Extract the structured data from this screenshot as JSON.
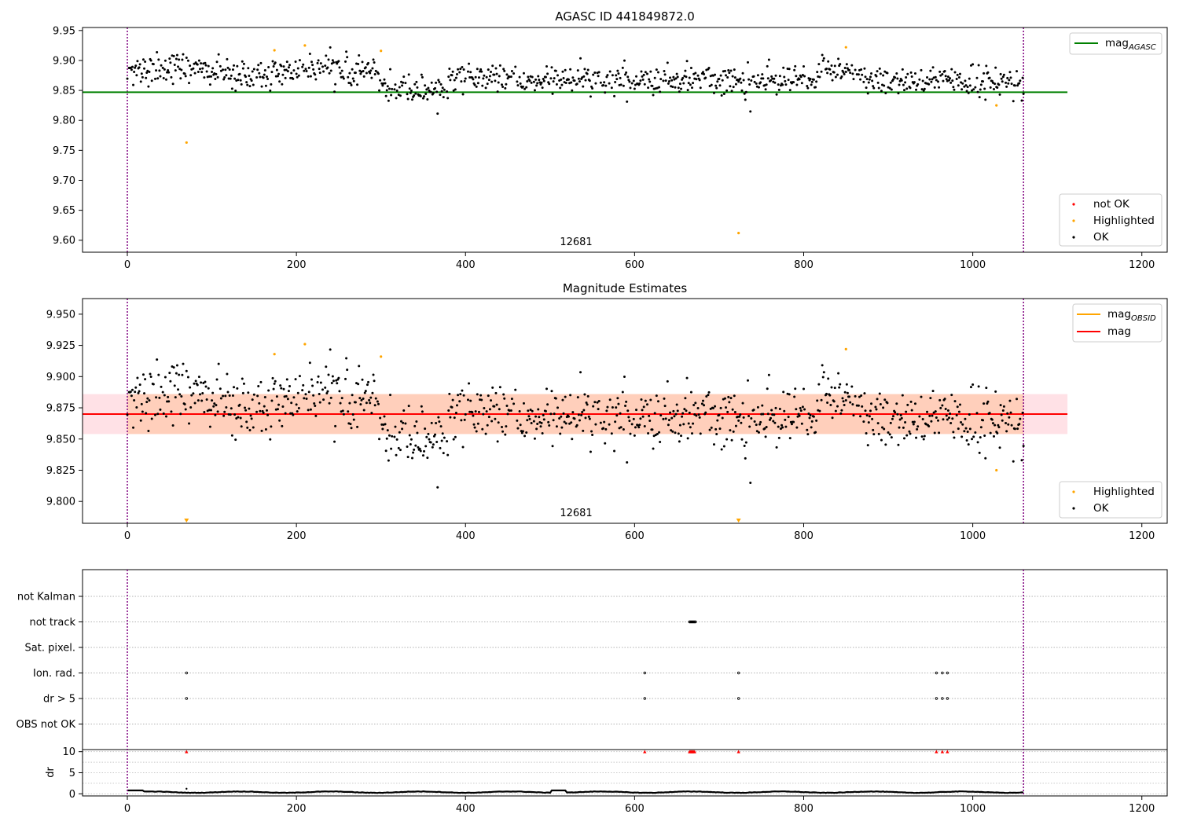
{
  "chart_data": [
    {
      "type": "scatter",
      "title": "AGASC ID 441849872.0",
      "xlim": [
        -53,
        1230
      ],
      "ylim": [
        9.58,
        9.955
      ],
      "xticks": [
        0,
        200,
        400,
        600,
        800,
        1000,
        1200
      ],
      "yticks": [
        9.6,
        9.65,
        9.7,
        9.75,
        9.8,
        9.85,
        9.9,
        9.95
      ],
      "obsid_label": "12681",
      "obsid_label_x": 530,
      "obs_bounds": [
        0,
        1060
      ],
      "mag_agasc": 9.847,
      "mag_agasc_range": [
        -53,
        1112
      ],
      "legend_lines": [
        {
          "label": "mag",
          "sub": "AGASC",
          "color": "#008000"
        }
      ],
      "legend_points": [
        {
          "label": "not OK",
          "color": "#ff0000"
        },
        {
          "label": "Highlighted",
          "color": "#ffa500"
        },
        {
          "label": "OK",
          "color": "#000000"
        }
      ],
      "series": [
        {
          "name": "Highlighted",
          "color": "#ffa500",
          "points": [
            [
              70,
              9.763
            ],
            [
              174,
              9.917
            ],
            [
              210,
              9.925
            ],
            [
              300,
              9.916
            ],
            [
              723,
              9.612
            ],
            [
              850,
              9.922
            ],
            [
              1028,
              9.825
            ]
          ]
        }
      ]
    },
    {
      "type": "scatter",
      "title": "Magnitude Estimates",
      "xlim": [
        -53,
        1230
      ],
      "ylim": [
        9.7825,
        9.9625
      ],
      "xticks": [
        0,
        200,
        400,
        600,
        800,
        1000,
        1200
      ],
      "yticks": [
        9.8,
        9.825,
        9.85,
        9.875,
        9.9,
        9.925,
        9.95
      ],
      "obsid_label": "12681",
      "obsid_label_x": 530,
      "obs_bounds": [
        0,
        1060
      ],
      "mag": 9.87,
      "mag_std_band": [
        9.854,
        9.886
      ],
      "mag_range": [
        -53,
        1112
      ],
      "legend_lines": [
        {
          "label": "mag",
          "sub": "OBSID",
          "color": "#ffa500"
        },
        {
          "label": "mag",
          "sub": "",
          "color": "#ff0000"
        }
      ],
      "legend_points": [
        {
          "label": "Highlighted",
          "color": "#ffa500"
        },
        {
          "label": "OK",
          "color": "#000000"
        }
      ],
      "series": [
        {
          "name": "Highlighted",
          "color": "#ffa500",
          "points": [
            [
              174,
              9.918
            ],
            [
              210,
              9.926
            ],
            [
              300,
              9.916
            ],
            [
              850,
              9.922
            ],
            [
              1028,
              9.825
            ]
          ]
        },
        {
          "name": "Highlighted (off-scale)",
          "color": "#ffa500",
          "points": [
            [
              70,
              9.783
            ],
            [
              723,
              9.783
            ]
          ]
        }
      ]
    },
    {
      "type": "scatter",
      "xlim": [
        -53,
        1230
      ],
      "xticks": [
        0,
        200,
        400,
        600,
        800,
        1000,
        1200
      ],
      "obs_bounds": [
        0,
        1060
      ],
      "flag_rows": [
        "not Kalman",
        "not track",
        "Sat. pixel.",
        "Ion. rad.",
        "dr > 5",
        "OBS not OK"
      ],
      "flags": {
        "not track": [
          665,
          666,
          667,
          668,
          669,
          670,
          671,
          672
        ],
        "Ion. rad.": [
          70,
          612,
          723,
          957,
          964,
          970
        ],
        "dr > 5": [
          70,
          612,
          723,
          957,
          964,
          970
        ]
      },
      "dr_ylabel": "dr",
      "dr_ylim": [
        -0.5,
        10.5
      ],
      "dr_yticks": [
        0,
        5,
        10
      ],
      "dr_clipped": [
        70,
        612,
        665,
        666,
        667,
        668,
        669,
        670,
        671,
        723,
        957,
        964,
        970
      ]
    }
  ]
}
